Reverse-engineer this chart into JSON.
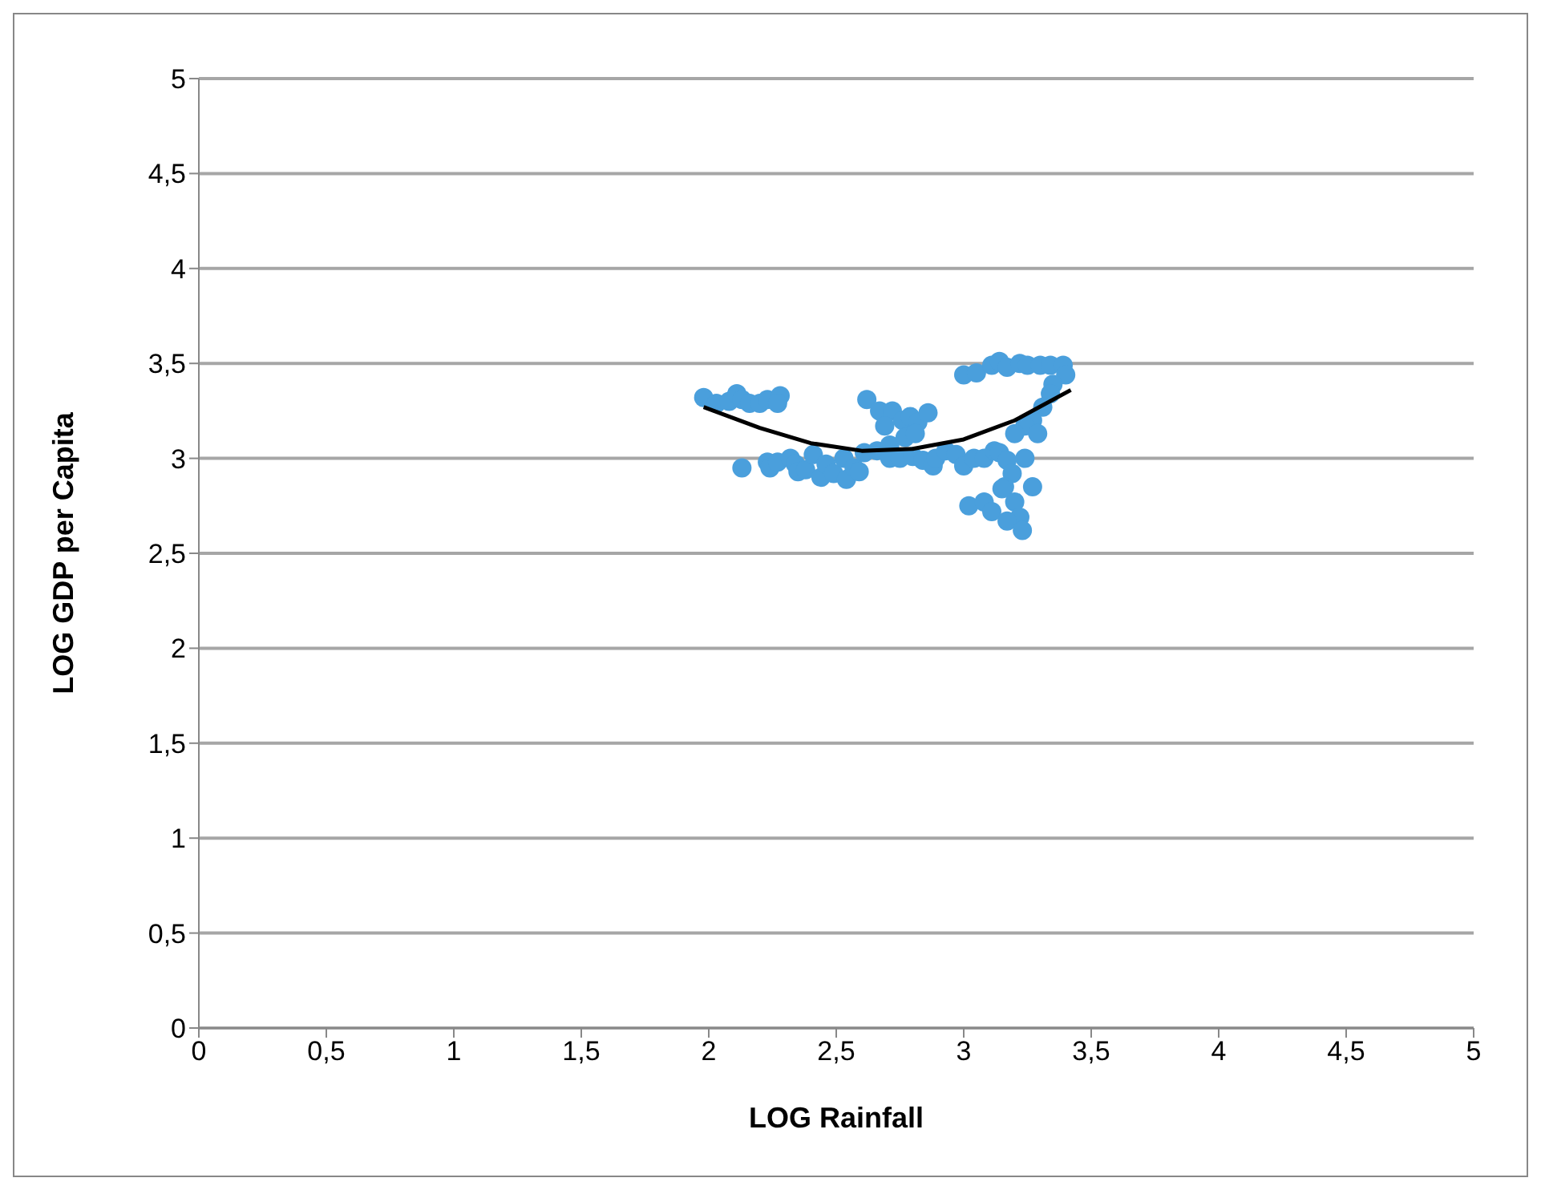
{
  "chart_data": {
    "type": "scatter",
    "xlabel": "LOG Rainfall",
    "ylabel": "LOG GDP per Capita",
    "xlim": [
      0,
      5
    ],
    "ylim": [
      0,
      5
    ],
    "xticks": [
      0,
      {
        "value": 0.5,
        "label": "0,5"
      },
      1,
      {
        "value": 1.5,
        "label": "1,5"
      },
      2,
      {
        "value": 2.5,
        "label": "2,5"
      },
      3,
      {
        "value": 3.5,
        "label": "3,5"
      },
      4,
      {
        "value": 4.5,
        "label": "4,5"
      },
      5
    ],
    "yticks": [
      0,
      {
        "value": 0.5,
        "label": "0,5"
      },
      1,
      {
        "value": 1.5,
        "label": "1,5"
      },
      2,
      {
        "value": 2.5,
        "label": "2,5"
      },
      3,
      {
        "value": 3.5,
        "label": "3,5"
      },
      4,
      {
        "value": 4.5,
        "label": "4,5"
      },
      5
    ],
    "grid": "y",
    "marker": "circle",
    "series": [
      {
        "type": "scatter",
        "color": "#4a9fdc",
        "x": [
          1.98,
          2.03,
          2.08,
          2.11,
          2.13,
          2.16,
          2.2,
          2.23,
          2.28,
          2.27,
          2.13,
          2.23,
          2.24,
          2.27,
          2.32,
          2.34,
          2.35,
          2.38,
          2.41,
          2.44,
          2.46,
          2.49,
          2.53,
          2.54,
          2.57,
          2.59,
          2.61,
          2.62,
          2.67,
          2.72,
          2.76,
          2.79,
          2.82,
          2.86,
          2.69,
          2.71,
          2.77,
          2.81,
          2.66,
          2.71,
          2.75,
          2.8,
          2.84,
          2.88,
          2.89,
          2.93,
          2.97,
          3.0,
          3.04,
          3.08,
          3.12,
          3.14,
          3.17,
          3.0,
          3.05,
          3.11,
          3.14,
          3.17,
          3.22,
          3.25,
          3.3,
          3.34,
          3.39,
          3.4,
          3.35,
          3.34,
          3.31,
          3.27,
          3.24,
          3.2,
          3.29,
          3.24,
          3.19,
          3.16,
          3.2,
          3.22,
          3.02,
          3.08,
          3.11,
          3.17,
          3.23,
          3.15,
          3.27
        ],
        "values": [
          3.32,
          3.29,
          3.3,
          3.34,
          3.31,
          3.29,
          3.29,
          3.31,
          3.33,
          3.29,
          2.95,
          2.98,
          2.95,
          2.98,
          3.0,
          2.97,
          2.93,
          2.94,
          3.02,
          2.9,
          2.97,
          2.92,
          3.0,
          2.89,
          2.95,
          2.93,
          3.03,
          3.31,
          3.25,
          3.25,
          3.2,
          3.22,
          3.19,
          3.24,
          3.17,
          3.07,
          3.11,
          3.13,
          3.04,
          3.0,
          3.0,
          3.01,
          2.99,
          2.96,
          3.0,
          3.04,
          3.02,
          2.96,
          3.0,
          3.0,
          3.04,
          3.03,
          2.99,
          3.44,
          3.45,
          3.49,
          3.51,
          3.48,
          3.5,
          3.49,
          3.49,
          3.49,
          3.49,
          3.44,
          3.39,
          3.34,
          3.27,
          3.2,
          3.17,
          3.13,
          3.13,
          3.0,
          2.92,
          2.85,
          2.77,
          2.69,
          2.75,
          2.77,
          2.72,
          2.67,
          2.62,
          2.84,
          2.85
        ]
      },
      {
        "type": "line",
        "color": "#000000",
        "marker": "none",
        "line_style": "solid",
        "x": [
          1.98,
          2.2,
          2.4,
          2.6,
          2.8,
          3.0,
          3.2,
          3.42
        ],
        "values": [
          3.27,
          3.16,
          3.08,
          3.04,
          3.05,
          3.1,
          3.2,
          3.36
        ]
      }
    ]
  }
}
